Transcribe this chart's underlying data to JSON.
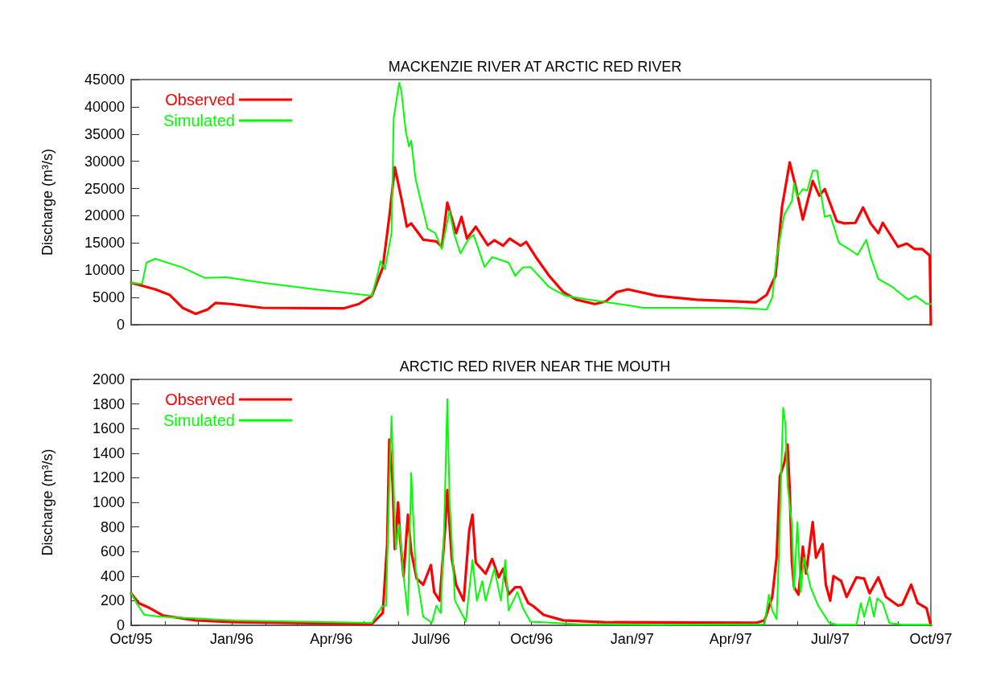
{
  "chart_data": [
    {
      "type": "line",
      "title": "MACKENZIE RIVER AT ARCTIC RED RIVER",
      "ylabel": "Discharge (m³/s)",
      "legend": "top left",
      "tick_labels": "y",
      "xlim": [
        "1995-10-01",
        "1997-10-01"
      ],
      "ylim": [
        0,
        45000
      ],
      "yticks": [
        0,
        5000,
        10000,
        15000,
        20000,
        25000,
        30000,
        35000,
        40000,
        45000
      ],
      "series": [
        {
          "name": "Observed",
          "color": "#ff0000",
          "x": [
            "1995-10-01",
            "1995-10-23",
            "1995-11-05",
            "1995-11-17",
            "1995-11-29",
            "1995-12-10",
            "1995-12-17",
            "1995-12-31",
            "1996-01-29",
            "1996-04-12",
            "1996-04-26",
            "1996-05-08",
            "1996-05-18",
            "1996-05-24",
            "1996-05-29",
            "1996-06-04",
            "1996-06-09",
            "1996-06-13",
            "1996-06-24",
            "1996-07-06",
            "1996-07-11",
            "1996-07-16",
            "1996-07-24",
            "1996-07-29",
            "1996-08-03",
            "1996-08-11",
            "1996-08-22",
            "1996-08-28",
            "1996-09-05",
            "1996-09-11",
            "1996-09-21",
            "1996-09-26",
            "1996-10-05",
            "1996-10-17",
            "1996-10-30",
            "1996-11-11",
            "1996-11-28",
            "1996-12-08",
            "1996-12-18",
            "1996-12-28",
            "1997-01-24",
            "1997-03-01",
            "1997-04-24",
            "1997-05-04",
            "1997-05-12",
            "1997-05-18",
            "1997-05-25",
            "1997-05-30",
            "1997-06-06",
            "1997-06-15",
            "1997-06-21",
            "1997-06-26",
            "1997-07-07",
            "1997-07-14",
            "1997-07-24",
            "1997-07-31",
            "1997-08-07",
            "1997-08-14",
            "1997-08-18",
            "1997-09-01",
            "1997-09-09",
            "1997-09-16",
            "1997-09-23",
            "1997-09-30",
            "1997-10-01"
          ],
          "values": [
            7700,
            6500,
            5500,
            3100,
            2000,
            2800,
            4000,
            3800,
            3100,
            3000,
            3800,
            5300,
            10500,
            19800,
            28900,
            23200,
            18000,
            18600,
            15600,
            15300,
            14300,
            22400,
            16800,
            19800,
            15800,
            18000,
            14600,
            15500,
            14500,
            15800,
            14500,
            15200,
            12400,
            9000,
            6000,
            4600,
            3800,
            4300,
            6000,
            6500,
            5300,
            4600,
            4100,
            5500,
            9000,
            21700,
            29800,
            25700,
            19300,
            26400,
            23700,
            24900,
            19000,
            18600,
            18700,
            21500,
            18600,
            16800,
            18700,
            14300,
            14900,
            13900,
            13900,
            12700,
            0
          ]
        },
        {
          "name": "Simulated",
          "color": "#00ff00",
          "x": [
            "1995-10-01",
            "1995-10-11",
            "1995-10-15",
            "1995-10-23",
            "1995-11-17",
            "1995-12-07",
            "1995-12-27",
            "1996-01-29",
            "1996-03-17",
            "1996-05-08",
            "1996-05-13",
            "1996-05-16",
            "1996-05-20",
            "1996-05-26",
            "1996-05-28",
            "1996-06-02",
            "1996-06-04",
            "1996-06-08",
            "1996-06-11",
            "1996-06-13",
            "1996-06-17",
            "1996-06-28",
            "1996-07-05",
            "1996-07-11",
            "1996-07-18",
            "1996-07-22",
            "1996-07-28",
            "1996-08-04",
            "1996-08-09",
            "1996-08-19",
            "1996-08-26",
            "1996-09-10",
            "1996-09-16",
            "1996-09-23",
            "1996-09-30",
            "1996-10-17",
            "1996-11-01",
            "1996-11-22",
            "1996-12-30",
            "1997-01-11",
            "1997-04-07",
            "1997-05-04",
            "1997-05-09",
            "1997-05-13",
            "1997-05-20",
            "1997-05-27",
            "1997-05-29",
            "1997-06-01",
            "1997-06-06",
            "1997-06-10",
            "1997-06-15",
            "1997-06-19",
            "1997-06-26",
            "1997-07-01",
            "1997-07-09",
            "1997-07-18",
            "1997-07-26",
            "1997-08-03",
            "1997-08-07",
            "1997-08-14",
            "1997-08-27",
            "1997-09-10",
            "1997-09-17",
            "1997-09-27",
            "1997-10-01"
          ],
          "values": [
            7700,
            7500,
            11400,
            12100,
            10500,
            8600,
            8700,
            7700,
            6500,
            5300,
            9000,
            11700,
            10200,
            16800,
            37900,
            44400,
            42900,
            35500,
            32700,
            33800,
            26700,
            17600,
            16800,
            13900,
            20900,
            16800,
            13100,
            15600,
            16500,
            10600,
            12400,
            11400,
            9000,
            10500,
            10600,
            6900,
            5300,
            4600,
            3500,
            3100,
            3100,
            2800,
            5000,
            12400,
            20200,
            22700,
            26000,
            23500,
            24900,
            24600,
            28300,
            28300,
            19800,
            20100,
            15000,
            13900,
            12800,
            15600,
            12400,
            8400,
            6900,
            4600,
            5300,
            3800,
            3800
          ]
        }
      ]
    },
    {
      "type": "line",
      "title": "ARCTIC RED RIVER NEAR THE MOUTH",
      "ylabel": "Discharge (m³/s)",
      "legend": "top left",
      "xlim": [
        "1995-10-01",
        "1997-10-01"
      ],
      "ylim": [
        0,
        2000
      ],
      "yticks": [
        0,
        200,
        400,
        600,
        800,
        1000,
        1200,
        1400,
        1600,
        1800,
        2000
      ],
      "xticks": [
        {
          "value": "1995-10",
          "label": "Oct/95"
        },
        {
          "value": "1995-11",
          "label": null
        },
        {
          "value": "1995-12",
          "label": null
        },
        {
          "value": "1996-01",
          "label": "Jan/96"
        },
        {
          "value": "1996-02",
          "label": null
        },
        {
          "value": "1996-03",
          "label": null
        },
        {
          "value": "1996-04",
          "label": "Apr/96"
        },
        {
          "value": "1996-05",
          "label": null
        },
        {
          "value": "1996-06",
          "label": null
        },
        {
          "value": "1996-07",
          "label": "Jul/96"
        },
        {
          "value": "1996-08",
          "label": null
        },
        {
          "value": "1996-09",
          "label": null
        },
        {
          "value": "1996-10",
          "label": "Oct/96"
        },
        {
          "value": "1996-11",
          "label": null
        },
        {
          "value": "1996-12",
          "label": null
        },
        {
          "value": "1997-01",
          "label": "Jan/97"
        },
        {
          "value": "1997-02",
          "label": null
        },
        {
          "value": "1997-03",
          "label": null
        },
        {
          "value": "1997-04",
          "label": "Apr/97"
        },
        {
          "value": "1997-05",
          "label": null
        },
        {
          "value": "1997-06",
          "label": null
        },
        {
          "value": "1997-07",
          "label": "Jul/97"
        },
        {
          "value": "1997-08",
          "label": null
        },
        {
          "value": "1997-09",
          "label": null
        },
        {
          "value": "1997-10",
          "label": "Oct/97"
        }
      ],
      "series": [
        {
          "name": "Observed",
          "color": "#ff0000",
          "x": [
            "1995-10-01",
            "1995-10-08",
            "1995-10-18",
            "1995-10-30",
            "1995-11-29",
            "1996-01-04",
            "1996-05-08",
            "1996-05-18",
            "1996-05-22",
            "1996-05-24",
            "1996-05-27",
            "1996-05-29",
            "1996-06-01",
            "1996-06-03",
            "1996-06-06",
            "1996-06-10",
            "1996-06-13",
            "1996-06-18",
            "1996-06-24",
            "1996-07-01",
            "1996-07-04",
            "1996-07-09",
            "1996-07-14",
            "1996-07-16",
            "1996-07-20",
            "1996-07-24",
            "1996-07-31",
            "1996-08-05",
            "1996-08-08",
            "1996-08-11",
            "1996-08-20",
            "1996-08-26",
            "1996-09-01",
            "1996-09-05",
            "1996-09-10",
            "1996-09-16",
            "1996-09-21",
            "1996-09-28",
            "1996-10-02",
            "1996-10-12",
            "1996-10-30",
            "1996-12-06",
            "1997-04-24",
            "1997-05-02",
            "1997-05-09",
            "1997-05-13",
            "1997-05-16",
            "1997-05-20",
            "1997-05-23",
            "1997-05-25",
            "1997-05-27",
            "1997-05-29",
            "1997-06-02",
            "1997-06-06",
            "1997-06-09",
            "1997-06-15",
            "1997-06-18",
            "1997-06-24",
            "1997-06-27",
            "1997-07-01",
            "1997-07-04",
            "1997-07-11",
            "1997-07-16",
            "1997-07-25",
            "1997-08-01",
            "1997-08-06",
            "1997-08-14",
            "1997-08-21",
            "1997-09-01",
            "1997-09-05",
            "1997-09-13",
            "1997-09-19",
            "1997-09-27",
            "1997-10-01"
          ],
          "values": [
            260,
            180,
            140,
            80,
            40,
            25,
            10,
            100,
            660,
            1510,
            1160,
            620,
            1000,
            690,
            400,
            900,
            600,
            380,
            330,
            490,
            270,
            200,
            790,
            1100,
            550,
            330,
            200,
            770,
            900,
            510,
            420,
            540,
            390,
            460,
            250,
            310,
            310,
            180,
            160,
            85,
            40,
            25,
            20,
            40,
            230,
            550,
            1210,
            1320,
            1470,
            1100,
            510,
            310,
            250,
            640,
            420,
            840,
            550,
            660,
            330,
            200,
            400,
            360,
            230,
            390,
            380,
            260,
            390,
            230,
            160,
            170,
            330,
            180,
            140,
            0
          ]
        },
        {
          "name": "Simulated",
          "color": "#00ff00",
          "x": [
            "1995-10-01",
            "1995-10-06",
            "1995-10-13",
            "1995-10-28",
            "1996-01-04",
            "1996-05-08",
            "1996-05-17",
            "1996-05-21",
            "1996-05-24",
            "1996-05-26",
            "1996-05-28",
            "1996-05-30",
            "1996-06-02",
            "1996-06-06",
            "1996-06-10",
            "1996-06-13",
            "1996-06-17",
            "1996-06-24",
            "1996-07-02",
            "1996-07-06",
            "1996-07-10",
            "1996-07-13",
            "1996-07-16",
            "1996-07-18",
            "1996-07-23",
            "1996-08-02",
            "1996-08-08",
            "1996-08-12",
            "1996-08-17",
            "1996-08-20",
            "1996-08-28",
            "1996-09-03",
            "1996-09-07",
            "1996-09-10",
            "1996-09-18",
            "1996-09-23",
            "1996-09-30",
            "1996-11-11",
            "1997-01-24",
            "1997-05-02",
            "1997-05-06",
            "1997-05-09",
            "1997-05-13",
            "1997-05-15",
            "1997-05-19",
            "1997-05-21",
            "1997-05-23",
            "1997-05-27",
            "1997-05-29",
            "1997-06-01",
            "1997-06-04",
            "1997-06-07",
            "1997-06-13",
            "1997-06-20",
            "1997-06-30",
            "1997-07-07",
            "1997-07-25",
            "1997-07-29",
            "1997-08-01",
            "1997-08-06",
            "1997-08-10",
            "1997-08-13",
            "1997-08-18",
            "1997-08-24",
            "1997-09-05",
            "1997-10-01"
          ],
          "values": [
            260,
            180,
            85,
            70,
            40,
            20,
            150,
            160,
            1160,
            1700,
            1120,
            620,
            820,
            400,
            85,
            1240,
            460,
            70,
            20,
            160,
            100,
            770,
            1840,
            1030,
            200,
            30,
            530,
            200,
            360,
            200,
            460,
            200,
            530,
            120,
            270,
            140,
            30,
            10,
            5,
            10,
            250,
            120,
            50,
            550,
            1770,
            1640,
            1140,
            820,
            290,
            840,
            270,
            550,
            310,
            160,
            20,
            5,
            5,
            180,
            70,
            230,
            70,
            220,
            180,
            20,
            5,
            5
          ]
        }
      ]
    }
  ]
}
